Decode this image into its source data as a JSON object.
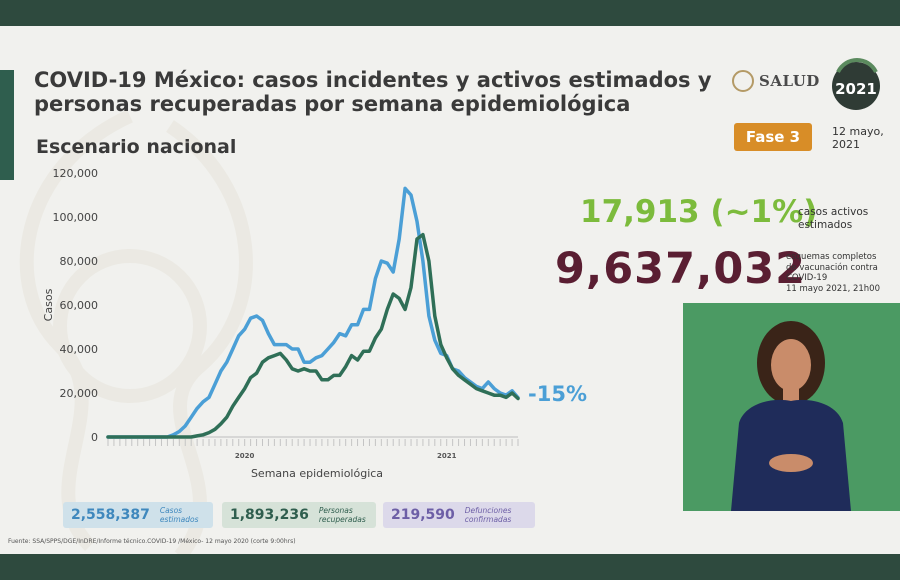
{
  "header": {
    "title_line1": "COVID-19 México: casos incidentes y activos estimados y",
    "title_line2": "personas recuperadas por semana epidemiológica",
    "subtitle": "Escenario nacional",
    "salud_logo_text": "SALUD",
    "mexico_logo_text": "2021",
    "fase": "Fase 3",
    "date_line1": "12 mayo,",
    "date_line2": "2021"
  },
  "stats": {
    "active_value": "17,913 (~1%)",
    "active_label_line1": "casos activos",
    "active_label_line2": "estimados",
    "vaccine_value": "9,637,032",
    "vaccine_label_line1": "esquemas completos",
    "vaccine_label_line2": "de vacunación contra",
    "vaccine_label_line3": "COVID-19",
    "vaccine_label_line4": "11 mayo 2021, 21h00",
    "change_pct": "-15%"
  },
  "chart_data": {
    "type": "line",
    "xlabel": "Semana epidemiológica",
    "ylabel": "Casos",
    "year_labels": [
      "2020",
      "2021"
    ],
    "yticks": [
      "0",
      "20,000",
      "40,000",
      "60,000",
      "80,000",
      "100,000",
      "120,000"
    ],
    "ylim": [
      0,
      120000
    ],
    "grid": false,
    "x": [
      1,
      2,
      3,
      4,
      5,
      6,
      7,
      8,
      9,
      10,
      11,
      12,
      13,
      14,
      15,
      16,
      17,
      18,
      19,
      20,
      21,
      22,
      23,
      24,
      25,
      26,
      27,
      28,
      29,
      30,
      31,
      32,
      33,
      34,
      35,
      36,
      37,
      38,
      39,
      40,
      41,
      42,
      43,
      44,
      45,
      46,
      47,
      48,
      49,
      50,
      51,
      52,
      53,
      54,
      55,
      56,
      57,
      58,
      59,
      60,
      61,
      62,
      63,
      64,
      65,
      66,
      67,
      68,
      69,
      70
    ],
    "series": [
      {
        "color": "#4b9fd6",
        "values": [
          0,
          0,
          0,
          0,
          0,
          0,
          0,
          0,
          0,
          0,
          0,
          1000,
          2500,
          5000,
          9000,
          13000,
          16000,
          18000,
          24000,
          30000,
          34000,
          40000,
          46000,
          49000,
          54000,
          55000,
          53000,
          47000,
          42000,
          42000,
          42000,
          40000,
          40000,
          34000,
          34000,
          36000,
          37000,
          40000,
          43000,
          47000,
          46000,
          51000,
          51000,
          58000,
          58000,
          72000,
          80000,
          79000,
          75000,
          90000,
          113000,
          110000,
          98000,
          80000,
          55000,
          44000,
          38000,
          37000,
          31000,
          30000,
          27000,
          25000,
          23000,
          22000,
          25000,
          22000,
          20000,
          19000,
          21000,
          17913
        ]
      },
      {
        "color": "#2f6f57",
        "values": [
          0,
          0,
          0,
          0,
          0,
          0,
          0,
          0,
          0,
          0,
          0,
          0,
          0,
          0,
          0,
          500,
          1000,
          2000,
          3500,
          6000,
          9000,
          14000,
          18000,
          22000,
          27000,
          29000,
          34000,
          36000,
          37000,
          38000,
          35000,
          31000,
          30000,
          31000,
          30000,
          30000,
          26000,
          26000,
          28000,
          28000,
          32000,
          37000,
          35000,
          39000,
          39000,
          45000,
          49000,
          58000,
          65000,
          63000,
          58000,
          68000,
          90000,
          92000,
          80000,
          55000,
          42000,
          36000,
          31000,
          28000,
          26000,
          24000,
          22000,
          21000,
          20000,
          19000,
          19000,
          18000,
          20000,
          17500
        ]
      }
    ]
  },
  "footer_boxes": [
    {
      "value": "2,558,387",
      "label_line1": "Casos",
      "label_line2": "estimados",
      "color": "#3f88bd"
    },
    {
      "value": "1,893,236",
      "label_line1": "Personas",
      "label_line2": "recuperadas",
      "color": "#2f5e4e"
    },
    {
      "value": "219,590",
      "label_line1": "Defunciones",
      "label_line2": "confirmadas",
      "color": "#6d5fa6"
    }
  ],
  "source": "Fuente: SSA/SPPS/DGE/InDRE/Informe técnico.COVID-19 /México- 12 mayo 2020 (corte 9:00hrs)"
}
